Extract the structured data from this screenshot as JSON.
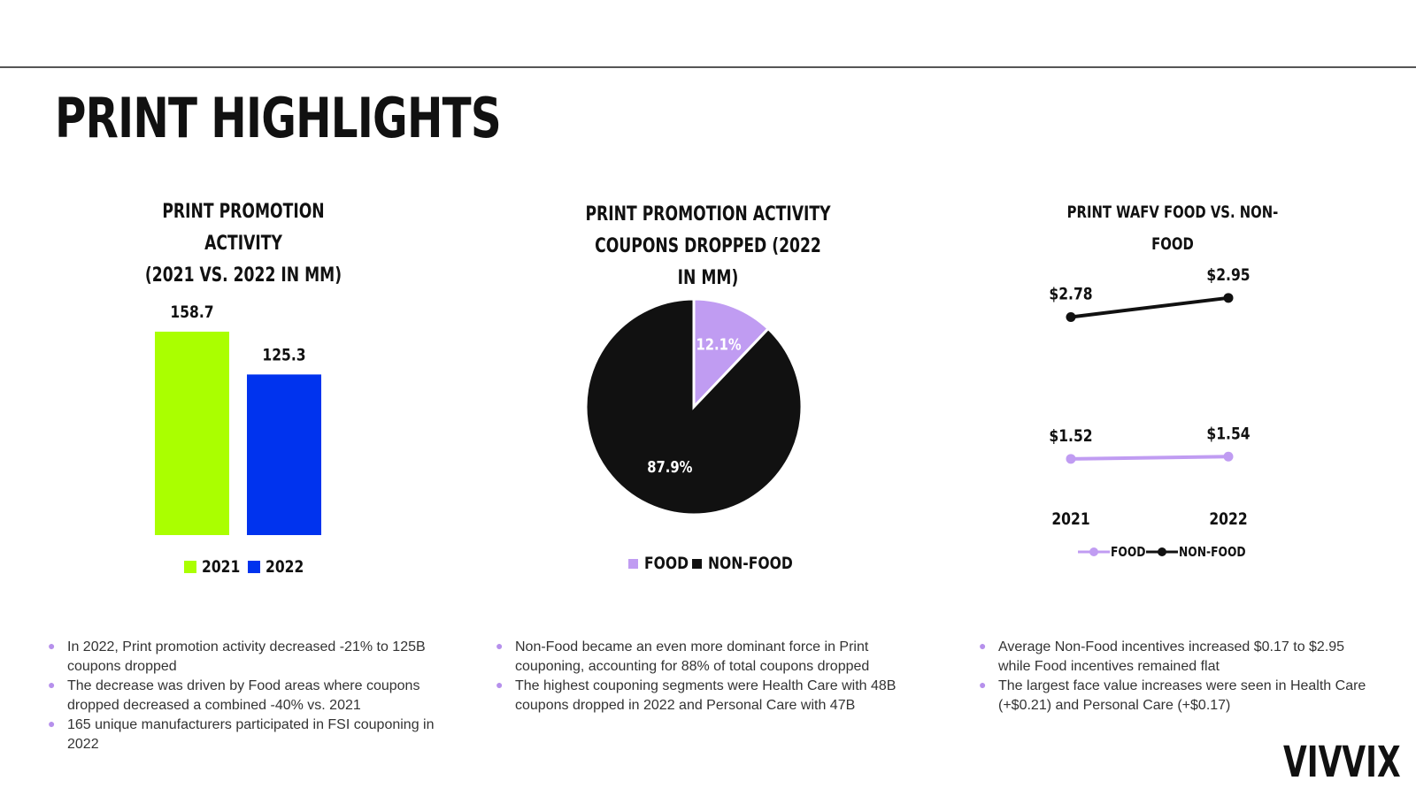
{
  "page": {
    "title": "PRINT HIGHLIGHTS",
    "logo": "VIVVIX"
  },
  "colors": {
    "lime": "#aaff00",
    "blue": "#0033ee",
    "lavender": "#c09cf2",
    "black": "#111111",
    "bullet": "#b690ec"
  },
  "chart_data": [
    {
      "type": "bar",
      "title": "PRINT PROMOTION ACTIVITY (2021 VS. 2022 IN MM)",
      "title_lines": [
        "PRINT PROMOTION ACTIVITY",
        "(2021 VS. 2022 IN MM)"
      ],
      "categories": [
        "2021",
        "2022"
      ],
      "values": [
        158.7,
        125.3
      ],
      "data_labels": [
        "158.7",
        "125.3"
      ],
      "legend": [
        "2021",
        "2022"
      ],
      "legend_position": "bottom",
      "grid": false,
      "ylim": [
        0,
        158.7
      ]
    },
    {
      "type": "pie",
      "title": "PRINT PROMOTION ACTIVITY COUPONS DROPPED (2022 IN MM)",
      "title_lines": [
        "PRINT PROMOTION ACTIVITY",
        "COUPONS DROPPED (2022 IN MM)"
      ],
      "slices": [
        {
          "label": "FOOD",
          "value": 12.1,
          "display": "12.1%"
        },
        {
          "label": "NON-FOOD",
          "value": 87.9,
          "display": "87.9%"
        }
      ],
      "legend": [
        "FOOD",
        "NON-FOOD"
      ],
      "legend_position": "bottom"
    },
    {
      "type": "line",
      "title": "PRINT WAFV FOOD VS. NON-FOOD",
      "title_lines": [
        "PRINT WAFV FOOD VS. NON-FOOD"
      ],
      "x": [
        "2021",
        "2022"
      ],
      "series": [
        {
          "name": "FOOD",
          "values": [
            1.52,
            1.54
          ],
          "labels": [
            "$1.52",
            "$1.54"
          ]
        },
        {
          "name": "NON-FOOD",
          "values": [
            2.78,
            2.95
          ],
          "labels": [
            "$2.78",
            "$2.95"
          ]
        }
      ],
      "legend": [
        "FOOD",
        "NON-FOOD"
      ],
      "legend_position": "bottom",
      "grid": false,
      "ylim": [
        1.0,
        3.2
      ]
    }
  ],
  "bullets": {
    "left": [
      "In 2022, Print promotion activity decreased -21% to 125B coupons dropped",
      "The decrease was driven by Food areas where coupons dropped decreased a combined -40% vs. 2021",
      "165 unique manufacturers participated in FSI couponing in 2022"
    ],
    "middle": [
      "Non-Food became an even more dominant force in Print couponing, accounting for 88% of total coupons dropped",
      "The highest couponing segments were Health Care with 48B coupons dropped in 2022 and Personal Care with 47B"
    ],
    "right": [
      "Average Non-Food incentives increased $0.17 to $2.95 while Food incentives remained flat",
      "The largest face value increases were seen in Health Care (+$0.21) and Personal Care (+$0.17)"
    ]
  }
}
